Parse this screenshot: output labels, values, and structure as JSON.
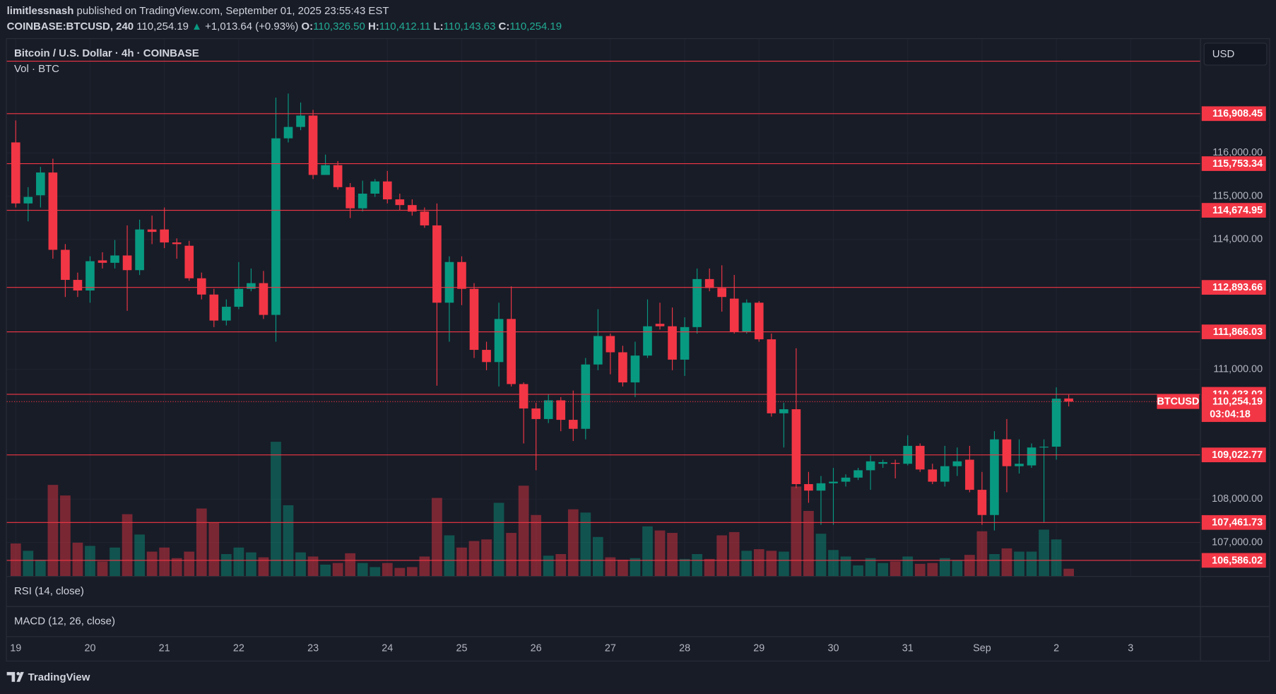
{
  "header": {
    "author": "limitlessnash",
    "published": "published on TradingView.com, September 01, 2025 23:55:43 EST",
    "symbol": "COINBASE:BTCUSD, 240",
    "last": "110,254.19",
    "arrow": "▲",
    "change": "+1,013.64 (+0.93%)",
    "ohlc": [
      {
        "key": "O:",
        "text": "110,326.50"
      },
      {
        "key": "H:",
        "text": "110,412.11"
      },
      {
        "key": "L:",
        "text": "110,143.63"
      },
      {
        "key": "C:",
        "text": "110,254.19"
      }
    ]
  },
  "legend": {
    "title": "Bitcoin / U.S. Dollar · 4h · COINBASE",
    "volume": "Vol · BTC",
    "rsi": "RSI (14, close)",
    "macd": "MACD (12, 26, close)"
  },
  "currency": "USD",
  "brand": "TradingView",
  "chart_data": {
    "type": "candlestick",
    "up_color": "#089981",
    "down_color": "#f23645",
    "level_color": "#f23645",
    "open": [
      116244,
      114834,
      115022,
      115548,
      113762,
      113067,
      112822,
      113518,
      113462,
      113631,
      113292,
      114232,
      114232,
      113932,
      113856,
      113104,
      112728,
      112127,
      112446,
      112860,
      112992,
      112258,
      116338,
      116601,
      116864,
      115492,
      115718,
      115210,
      114721,
      115060,
      115342,
      114928,
      114796,
      114646,
      114326,
      112540,
      113480,
      112860,
      111450,
      111168,
      112164,
      110660,
      110096,
      109852,
      110284,
      109833,
      109626,
      111112,
      111770,
      111394,
      110698,
      111318,
      112052,
      111995,
      111224,
      111976,
      113086,
      112879,
      112634,
      111864,
      112540,
      111694,
      109984,
      110078,
      108348,
      108198,
      108367,
      108404,
      108498,
      108668,
      108818,
      108837,
      108818,
      109232,
      108686,
      108404,
      108762,
      108912,
      108216,
      107634,
      109382,
      108762,
      108780,
      109194,
      109213,
      110326.5
    ],
    "high": [
      116752,
      115210,
      115680,
      115868,
      113894,
      113236,
      113612,
      113706,
      113988,
      114326,
      114458,
      114552,
      114740,
      114026,
      113969,
      113236,
      112860,
      112616,
      113480,
      113330,
      113274,
      117278,
      117372,
      117165,
      116996,
      115962,
      115812,
      115304,
      115360,
      115398,
      115586,
      115060,
      114928,
      114740,
      114834,
      113612,
      113612,
      112992,
      111638,
      112540,
      112916,
      110698,
      110228,
      110416,
      110360,
      110510,
      111262,
      112390,
      111826,
      111544,
      111638,
      112616,
      112540,
      112428,
      112202,
      113330,
      113330,
      113405,
      113180,
      112616,
      112578,
      111826,
      110228,
      111488,
      108630,
      108536,
      108724,
      108574,
      108724,
      109006,
      108912,
      108912,
      109476,
      109288,
      108818,
      109232,
      109194,
      109232,
      108630,
      109570,
      109852,
      109382,
      109288,
      109382,
      110585,
      110412.11
    ],
    "low": [
      114740,
      114420,
      114740,
      113556,
      112672,
      112672,
      112540,
      113330,
      113330,
      112352,
      113180,
      113894,
      113800,
      113556,
      113048,
      112616,
      111976,
      112014,
      112390,
      112804,
      112164,
      111638,
      116244,
      116526,
      115398,
      115492,
      115154,
      114496,
      114646,
      114984,
      114834,
      114684,
      114552,
      114270,
      110623,
      111638,
      112484,
      111262,
      110980,
      110604,
      110604,
      109288,
      108668,
      109758,
      109570,
      109344,
      109382,
      110980,
      110886,
      110604,
      110360,
      111262,
      111920,
      110980,
      110848,
      111826,
      112804,
      112334,
      111826,
      111826,
      111638,
      109908,
      109194,
      108254,
      107916,
      107408,
      107408,
      108292,
      108442,
      108216,
      108724,
      108480,
      108780,
      108630,
      108348,
      108292,
      108536,
      108160,
      107408,
      107276,
      108160,
      108592,
      108724,
      107464,
      108912,
      110143.63
    ],
    "close": [
      114834,
      114984,
      115548,
      113762,
      113067,
      112822,
      113499,
      113462,
      113631,
      113292,
      114232,
      114176,
      113932,
      113894,
      113104,
      112728,
      112127,
      112446,
      112860,
      112992,
      112258,
      116338,
      116601,
      116864,
      115492,
      115718,
      115210,
      114721,
      115060,
      115342,
      114928,
      114796,
      114646,
      114326,
      112540,
      113480,
      112860,
      111450,
      111168,
      112164,
      110660,
      110096,
      109852,
      110284,
      109833,
      109626,
      111112,
      111770,
      111394,
      110698,
      111318,
      111995,
      111995,
      111224,
      111976,
      113086,
      112879,
      112672,
      111864,
      112540,
      111694,
      109984,
      110078,
      108348,
      108198,
      108367,
      108404,
      108498,
      108668,
      108874,
      108856,
      108818,
      109232,
      108686,
      108404,
      108762,
      108874,
      108216,
      107634,
      109382,
      108762,
      108818,
      109194,
      109213,
      110322,
      110254.19
    ],
    "volume": [
      400,
      310,
      200,
      1120,
      990,
      410,
      370,
      180,
      350,
      760,
      510,
      300,
      350,
      220,
      300,
      830,
      660,
      270,
      350,
      290,
      230,
      1650,
      870,
      290,
      240,
      140,
      160,
      280,
      160,
      110,
      160,
      100,
      110,
      240,
      960,
      500,
      350,
      430,
      450,
      900,
      530,
      1110,
      750,
      250,
      270,
      820,
      780,
      480,
      230,
      200,
      220,
      610,
      560,
      530,
      210,
      270,
      210,
      500,
      540,
      310,
      330,
      310,
      300,
      1100,
      800,
      520,
      320,
      240,
      130,
      220,
      160,
      180,
      240,
      150,
      160,
      220,
      190,
      260,
      550,
      270,
      340,
      300,
      300,
      570,
      450,
      90
    ],
    "vlim": [
      0,
      1650
    ],
    "xlim": [
      -0.72,
      95.6
    ],
    "xticks": [
      {
        "value": 0,
        "label": "19"
      },
      {
        "value": 6,
        "label": "20"
      },
      {
        "value": 12,
        "label": "21"
      },
      {
        "value": 18,
        "label": "22"
      },
      {
        "value": 24,
        "label": "23"
      },
      {
        "value": 30,
        "label": "24"
      },
      {
        "value": 36,
        "label": "25"
      },
      {
        "value": 42,
        "label": "26"
      },
      {
        "value": 48,
        "label": "27"
      },
      {
        "value": 54,
        "label": "28"
      },
      {
        "value": 60,
        "label": "29"
      },
      {
        "value": 66,
        "label": "30"
      },
      {
        "value": 72,
        "label": "31"
      },
      {
        "value": 78,
        "label": "Sep"
      },
      {
        "value": 84,
        "label": "2"
      },
      {
        "value": 90,
        "label": "3"
      }
    ],
    "ylim": [
      106224,
      118632
    ],
    "yticks": [
      {
        "value": 116000,
        "label": "116,000.00"
      },
      {
        "value": 115000,
        "label": "115,000.00"
      },
      {
        "value": 114000,
        "label": "114,000.00"
      },
      {
        "value": 111000,
        "label": "111,000.00"
      },
      {
        "value": 108000,
        "label": "108,000.00"
      },
      {
        "value": 107000,
        "label": "107,000.00"
      }
    ],
    "levels": [
      118120,
      {
        "value": 116908.45,
        "label": "116,908.45"
      },
      {
        "value": 115753.34,
        "label": "115,753.34"
      },
      {
        "value": 114674.95,
        "label": "114,674.95"
      },
      {
        "value": 112893.66,
        "label": "112,893.66"
      },
      {
        "value": 111866.03,
        "label": "111,866.03"
      },
      {
        "value": 110423.02,
        "label": "110,423.02"
      },
      {
        "value": 109022.77,
        "label": "109,022.77"
      },
      {
        "value": 107461.73,
        "label": "107,461.73"
      },
      {
        "value": 106586.02,
        "label": "106,586.02"
      }
    ],
    "last_price": {
      "value": 110254.19,
      "label": "110,254.19"
    },
    "symbol_tag": "BTCUSD",
    "countdown": "03:04:18"
  }
}
